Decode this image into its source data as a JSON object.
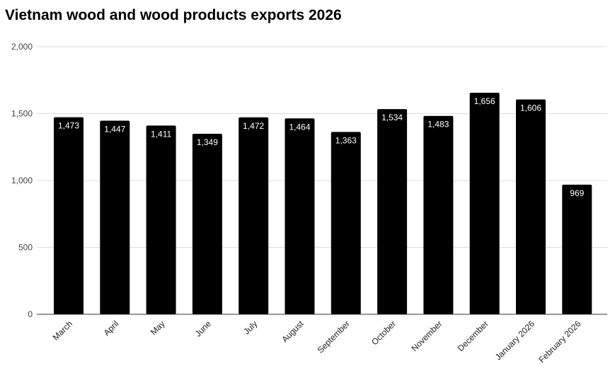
{
  "chart_data": {
    "type": "bar",
    "title": "Vietnam wood and wood products exports 2026",
    "xlabel": "",
    "ylabel": "",
    "ylim": [
      0,
      2000
    ],
    "yticks": [
      0,
      500,
      1000,
      1500,
      2000
    ],
    "ytick_labels": [
      "0",
      "500",
      "1,000",
      "1,500",
      "2,000"
    ],
    "grid": true,
    "categories": [
      "March",
      "April",
      "May",
      "June",
      "July",
      "August",
      "September",
      "October",
      "November",
      "December",
      "January 2026",
      "February 2026"
    ],
    "values": [
      1473,
      1447,
      1411,
      1349,
      1472,
      1464,
      1363,
      1534,
      1483,
      1656,
      1606,
      969
    ],
    "data_labels": [
      "1,473",
      "1,447",
      "1,411",
      "1,349",
      "1,472",
      "1,464",
      "1,363",
      "1,534",
      "1,483",
      "1,656",
      "1,606",
      "969"
    ],
    "bar_color": "#000000"
  }
}
